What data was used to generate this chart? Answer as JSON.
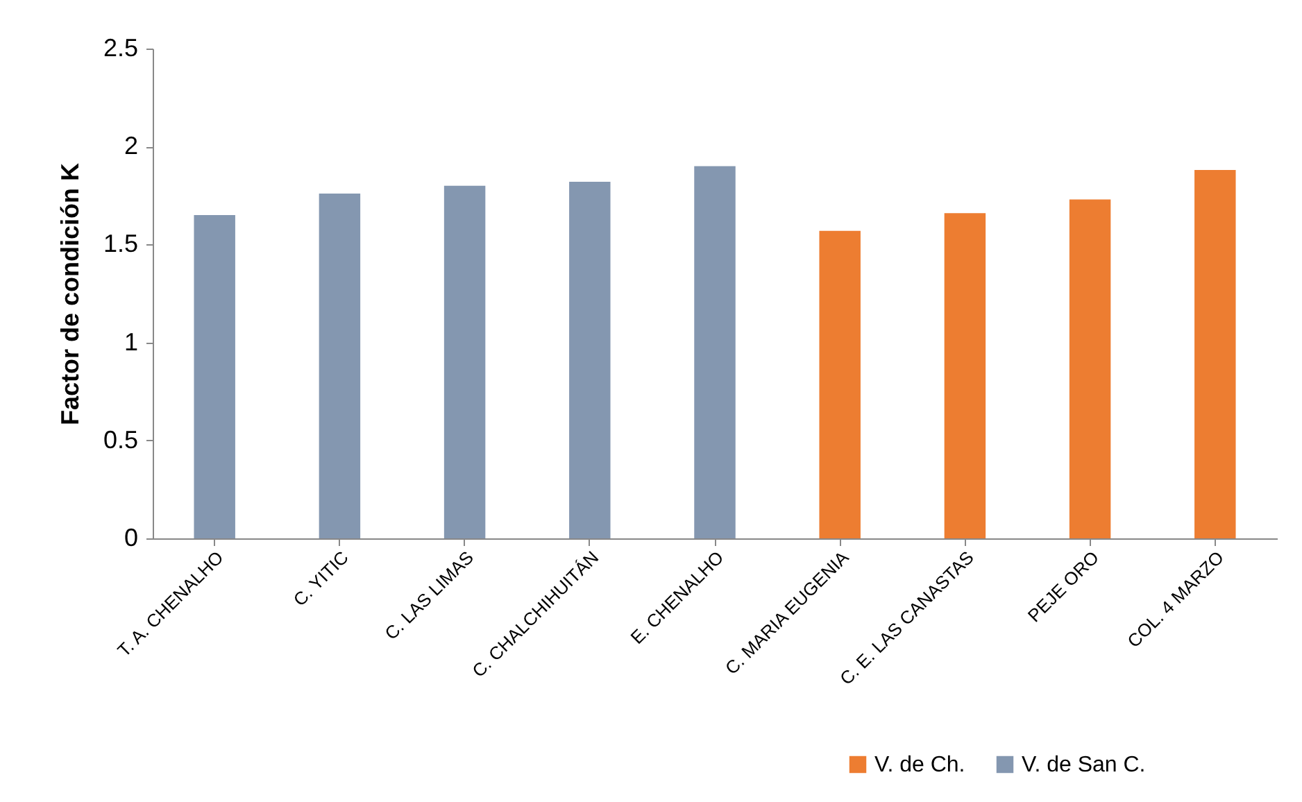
{
  "chart_data": {
    "type": "bar",
    "ylabel": "Factor de condición K",
    "categories": [
      "T. A. CHENALHO",
      "C. YITIC",
      "C. LAS LIMAS",
      "C. CHALCHIHUITÁN",
      "E. CHENALHO",
      "C. MARIA EUGENIA",
      "C. E. LAS CANASTAS",
      "PEJE ORO",
      "COL. 4 MARZO"
    ],
    "series": [
      {
        "name": "V. de Ch.",
        "color": "#ed7d31",
        "values": [
          null,
          null,
          null,
          null,
          null,
          1.57,
          1.66,
          1.73,
          1.88
        ]
      },
      {
        "name": "V. de San C.",
        "color": "#8497b0",
        "values": [
          1.65,
          1.76,
          1.8,
          1.82,
          1.9,
          null,
          null,
          null,
          null
        ]
      }
    ],
    "ylim": [
      0,
      2.5
    ],
    "yticks": [
      0,
      0.5,
      1,
      1.5,
      2,
      2.5
    ],
    "legend": "bottom right"
  }
}
